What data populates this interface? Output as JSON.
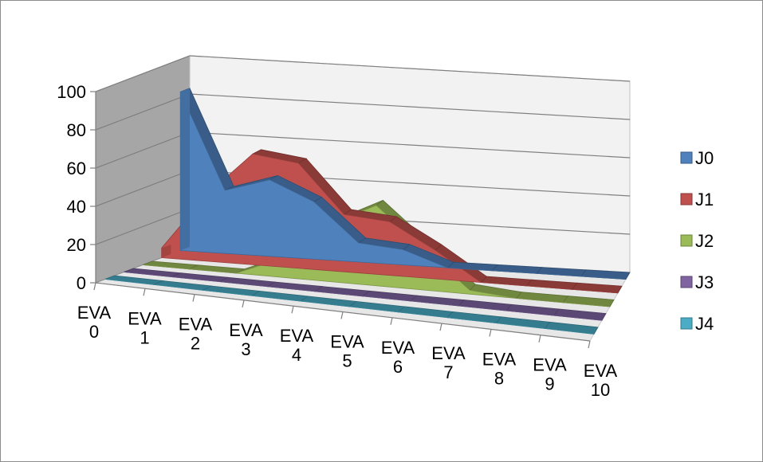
{
  "chart_data": {
    "type": "area",
    "three_d": true,
    "categories": [
      "EVA 0",
      "EVA 1",
      "EVA 2",
      "EVA 3",
      "EVA 4",
      "EVA 5",
      "EVA 6",
      "EVA 7",
      "EVA 8",
      "EVA 9",
      "EVA 10"
    ],
    "category_lines": [
      [
        "EVA",
        "0"
      ],
      [
        "EVA",
        "1"
      ],
      [
        "EVA",
        "2"
      ],
      [
        "EVA",
        "3"
      ],
      [
        "EVA",
        "4"
      ],
      [
        "EVA",
        "5"
      ],
      [
        "EVA",
        "6"
      ],
      [
        "EVA",
        "7"
      ],
      [
        "EVA",
        "8"
      ],
      [
        "EVA",
        "9"
      ],
      [
        "EVA",
        "10"
      ]
    ],
    "series": [
      {
        "name": "J0",
        "color": "#4f81bd",
        "values": [
          83,
          33,
          40,
          30,
          10,
          8,
          0,
          0,
          0,
          0,
          0
        ]
      },
      {
        "name": "J1",
        "color": "#c0504d",
        "values": [
          5,
          35,
          58,
          55,
          30,
          28,
          15,
          0,
          0,
          0,
          0
        ]
      },
      {
        "name": "J2",
        "color": "#9bbb59",
        "values": [
          0,
          0,
          0,
          10,
          30,
          42,
          22,
          2,
          0,
          0,
          0
        ]
      },
      {
        "name": "J3",
        "color": "#8064a2",
        "values": [
          0,
          0,
          0,
          0,
          0,
          0,
          0,
          0,
          0,
          0,
          0
        ]
      },
      {
        "name": "J4",
        "color": "#4bacc6",
        "values": [
          0,
          0,
          0,
          0,
          0,
          0,
          0,
          0,
          0,
          0,
          0
        ]
      }
    ],
    "y_ticks": [
      0,
      20,
      40,
      60,
      80,
      100
    ],
    "ylim": [
      0,
      100
    ],
    "gridlines": true,
    "legend_position": "right"
  }
}
